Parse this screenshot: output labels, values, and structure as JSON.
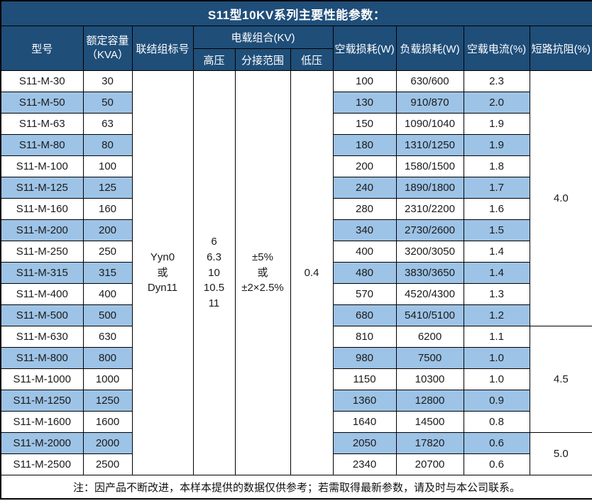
{
  "title": "S11型10KV系列主要性能参数：",
  "note": "注：因产品不断改进，本样本提供的数据仅供参考；若需取得最新参数，请及时与本公司联系。",
  "colors": {
    "header_bg": "#1F4E79",
    "header_text": "#FFFFFF",
    "alt_row_bg": "#9DC3E6",
    "border": "#000000"
  },
  "table": {
    "header": {
      "model": "型号",
      "capacity_line1": "额定容量",
      "capacity_line2": "（KVA）",
      "connection": "联结组标号",
      "voltage_combo": "电载组合(KV)",
      "high_voltage": "高压",
      "tap_range": "分接范围",
      "low_voltage": "低压",
      "no_load_loss": "空载损耗(W)",
      "load_loss": "负载损耗(W)",
      "no_load_current": "空载电流(%)",
      "short_circuit_impedance": "短路抗阻(%)"
    },
    "merged": {
      "connection_lines": [
        "Yyn0",
        "或",
        "Dyn11"
      ],
      "high_voltage_lines": [
        "6",
        "6.3",
        "10",
        "10.5",
        "11"
      ],
      "tap_range_lines": [
        "±5%",
        "或",
        "±2×2.5%"
      ],
      "low_voltage": "0.4"
    },
    "impedance_groups": [
      {
        "value": "4.0",
        "rows": 12
      },
      {
        "value": "4.5",
        "rows": 5
      },
      {
        "value": "5.0",
        "rows": 2
      }
    ],
    "rows": [
      {
        "model": "S11-M-30",
        "capacity": "30",
        "no_load_loss": "100",
        "load_loss": "630/600",
        "no_load_current": "2.3"
      },
      {
        "model": "S11-M-50",
        "capacity": "50",
        "no_load_loss": "130",
        "load_loss": "910/870",
        "no_load_current": "2.0"
      },
      {
        "model": "S11-M-63",
        "capacity": "63",
        "no_load_loss": "150",
        "load_loss": "1090/1040",
        "no_load_current": "1.9"
      },
      {
        "model": "S11-M-80",
        "capacity": "80",
        "no_load_loss": "180",
        "load_loss": "1310/1250",
        "no_load_current": "1.9"
      },
      {
        "model": "S11-M-100",
        "capacity": "100",
        "no_load_loss": "200",
        "load_loss": "1580/1500",
        "no_load_current": "1.8"
      },
      {
        "model": "S11-M-125",
        "capacity": "125",
        "no_load_loss": "240",
        "load_loss": "1890/1800",
        "no_load_current": "1.7"
      },
      {
        "model": "S11-M-160",
        "capacity": "160",
        "no_load_loss": "280",
        "load_loss": "2310/2200",
        "no_load_current": "1.6"
      },
      {
        "model": "S11-M-200",
        "capacity": "200",
        "no_load_loss": "340",
        "load_loss": "2730/2600",
        "no_load_current": "1.5"
      },
      {
        "model": "S11-M-250",
        "capacity": "250",
        "no_load_loss": "400",
        "load_loss": "3200/3050",
        "no_load_current": "1.4"
      },
      {
        "model": "S11-M-315",
        "capacity": "315",
        "no_load_loss": "480",
        "load_loss": "3830/3650",
        "no_load_current": "1.4"
      },
      {
        "model": "S11-M-400",
        "capacity": "400",
        "no_load_loss": "570",
        "load_loss": "4520/4300",
        "no_load_current": "1.3"
      },
      {
        "model": "S11-M-500",
        "capacity": "500",
        "no_load_loss": "680",
        "load_loss": "5410/5100",
        "no_load_current": "1.2"
      },
      {
        "model": "S11-M-630",
        "capacity": "630",
        "no_load_loss": "810",
        "load_loss": "6200",
        "no_load_current": "1.1"
      },
      {
        "model": "S11-M-800",
        "capacity": "800",
        "no_load_loss": "980",
        "load_loss": "7500",
        "no_load_current": "1.0"
      },
      {
        "model": "S11-M-1000",
        "capacity": "1000",
        "no_load_loss": "1150",
        "load_loss": "10300",
        "no_load_current": "1.0"
      },
      {
        "model": "S11-M-1250",
        "capacity": "1250",
        "no_load_loss": "1360",
        "load_loss": "12800",
        "no_load_current": "0.9"
      },
      {
        "model": "S11-M-1600",
        "capacity": "1600",
        "no_load_loss": "1640",
        "load_loss": "14500",
        "no_load_current": "0.8"
      },
      {
        "model": "S11-M-2000",
        "capacity": "2000",
        "no_load_loss": "2050",
        "load_loss": "17820",
        "no_load_current": "0.6"
      },
      {
        "model": "S11-M-2500",
        "capacity": "2500",
        "no_load_loss": "2340",
        "load_loss": "20700",
        "no_load_current": "0.6"
      }
    ]
  }
}
